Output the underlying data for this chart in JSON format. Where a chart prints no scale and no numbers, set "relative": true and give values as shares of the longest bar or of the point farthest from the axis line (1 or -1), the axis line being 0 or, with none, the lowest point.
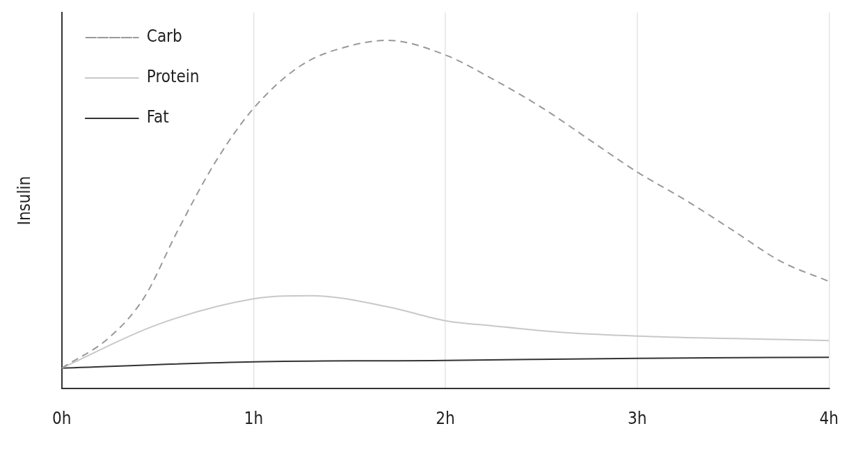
{
  "chart_data": {
    "type": "line",
    "ylabel": "Insulin",
    "relative": true,
    "xlim": [
      0,
      4
    ],
    "xticks": [
      {
        "value": 0,
        "label": "0h"
      },
      {
        "value": 1,
        "label": "1h"
      },
      {
        "value": 2,
        "label": "2h"
      },
      {
        "value": 3,
        "label": "3h"
      },
      {
        "value": 4,
        "label": "4h"
      }
    ],
    "grid": "x",
    "legend": "top left",
    "marker": "none",
    "series": [
      {
        "name": "Carb",
        "color": "#999999",
        "line_style": "dashed",
        "x": [
          0,
          0.25,
          0.43,
          0.6,
          0.8,
          1,
          1.25,
          1.5,
          1.7,
          2,
          2.25,
          2.5,
          2.75,
          3,
          3.25,
          3.5,
          3.75,
          4
        ],
        "values": [
          0.059,
          0.148,
          0.262,
          0.449,
          0.65,
          0.805,
          0.929,
          0.984,
          1,
          0.958,
          0.888,
          0.808,
          0.715,
          0.622,
          0.542,
          0.454,
          0.365,
          0.308
        ]
      },
      {
        "name": "Protein",
        "color": "#c8c8c8",
        "line_style": "solid",
        "x": [
          0,
          0.5,
          1,
          1.3,
          1.7,
          2,
          2.25,
          2.6,
          3,
          4
        ],
        "values": [
          0.059,
          0.184,
          0.258,
          0.267,
          0.235,
          0.195,
          0.18,
          0.162,
          0.151,
          0.138
        ]
      },
      {
        "name": "Fat",
        "color": "#333333",
        "line_style": "solid",
        "x": [
          0,
          1,
          2,
          3,
          4
        ],
        "values": [
          0.059,
          0.077,
          0.081,
          0.087,
          0.09
        ]
      }
    ]
  }
}
